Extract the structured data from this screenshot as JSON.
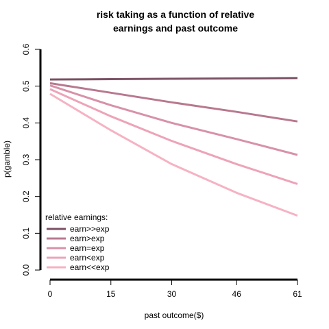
{
  "chart_data": {
    "type": "line",
    "title_lines": [
      "risk taking as a function of relative",
      "earnings and past outcome"
    ],
    "xlabel": "past outcome($)",
    "ylabel": "p(gamble)",
    "x": [
      0,
      15,
      30,
      46,
      61
    ],
    "x_tick_labels": [
      "0",
      "15",
      "30",
      "46",
      "61"
    ],
    "xlim": [
      0,
      61
    ],
    "ylim": [
      0,
      0.6
    ],
    "y_ticks": [
      0.0,
      0.1,
      0.2,
      0.3,
      0.4,
      0.5,
      0.6
    ],
    "y_tick_labels": [
      "0.0",
      "0.1",
      "0.2",
      "0.3",
      "0.4",
      "0.5",
      "0.6"
    ],
    "grid": false,
    "legend": {
      "title": "relative earnings:",
      "placement": "bottom-left"
    },
    "series": [
      {
        "name": "earn>>exp",
        "color": "#7a5062",
        "values": [
          0.518,
          0.519,
          0.52,
          0.521,
          0.522
        ]
      },
      {
        "name": "earn>exp",
        "color": "#b87890",
        "values": [
          0.508,
          0.482,
          0.456,
          0.43,
          0.404
        ]
      },
      {
        "name": "earn=exp",
        "color": "#d891a9",
        "values": [
          0.502,
          0.448,
          0.4,
          0.356,
          0.313
        ]
      },
      {
        "name": "earn<exp",
        "color": "#eda3b8",
        "values": [
          0.492,
          0.418,
          0.351,
          0.288,
          0.234
        ]
      },
      {
        "name": "earn<<exp",
        "color": "#f6b2c3",
        "values": [
          0.479,
          0.38,
          0.288,
          0.21,
          0.148
        ]
      }
    ]
  }
}
